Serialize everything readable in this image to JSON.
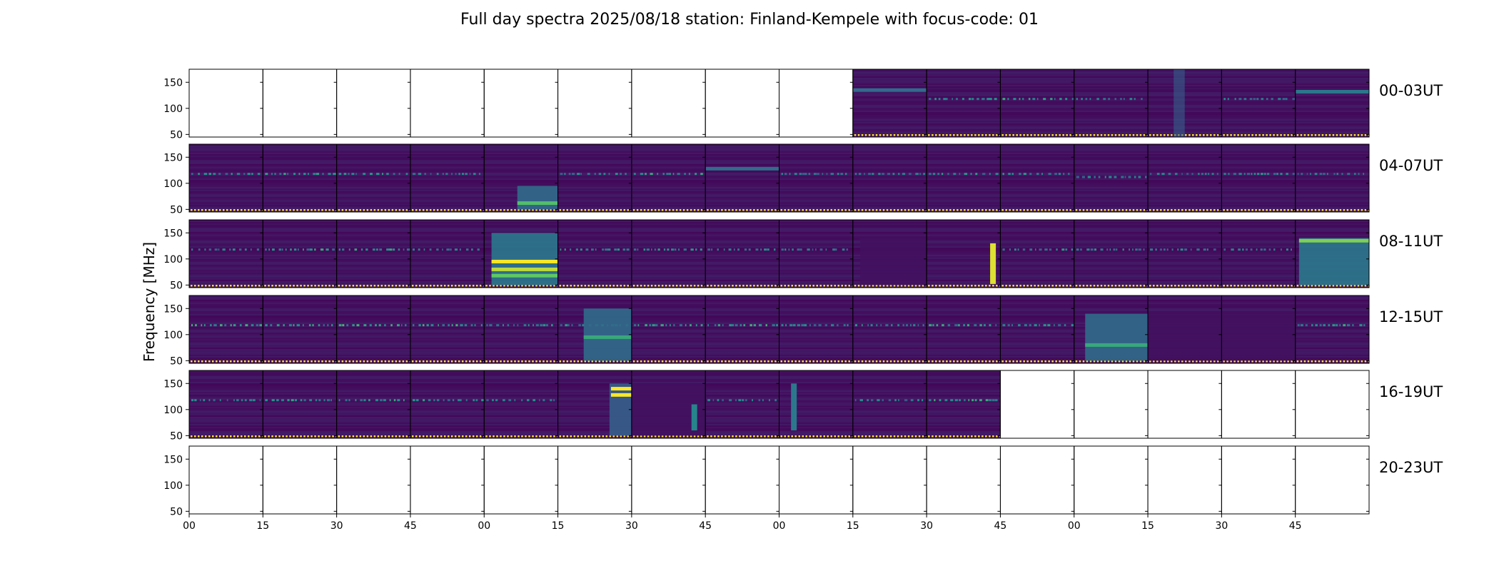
{
  "chart_data": {
    "type": "heatmap",
    "title": "Full day spectra 2025/08/18 station: Finland-Kempele with focus-code: 01",
    "ylabel": "Frequency [MHz]",
    "xlabel": "",
    "ylim": [
      45,
      175
    ],
    "yticks": [
      "150",
      "100",
      "50"
    ],
    "ytick_values": [
      150,
      100,
      50
    ],
    "xtick_labels": [
      "00",
      "15",
      "30",
      "45",
      "00",
      "15",
      "30",
      "45",
      "00",
      "15",
      "30",
      "45",
      "00",
      "15",
      "30",
      "45"
    ],
    "colormap": [
      "#440154",
      "#3b528b",
      "#21918c",
      "#5ec962",
      "#fde725"
    ],
    "rows": [
      {
        "label": "00-03UT",
        "data_flags": [
          0,
          0,
          0,
          0,
          0,
          0,
          0,
          0,
          0,
          1,
          1,
          1,
          1,
          1,
          1,
          1
        ],
        "features": [
          {
            "panel": 9,
            "type": "hline",
            "freq": 135,
            "intensity": 0.35
          },
          {
            "panel": 10,
            "type": "dashed",
            "freq": 118,
            "intensity": 0.55
          },
          {
            "panel": 11,
            "type": "dashed",
            "freq": 118,
            "intensity": 0.55
          },
          {
            "panel": 12,
            "type": "dashed",
            "freq": 118,
            "intensity": 0.5
          },
          {
            "panel": 13,
            "type": "vband",
            "t0": 0.35,
            "t1": 0.5,
            "intensity": 0.3
          },
          {
            "panel": 14,
            "type": "dashed",
            "freq": 118,
            "intensity": 0.45
          },
          {
            "panel": 15,
            "type": "hline",
            "freq": 132,
            "intensity": 0.4
          }
        ]
      },
      {
        "label": "04-07UT",
        "data_flags": [
          1,
          1,
          1,
          1,
          1,
          1,
          1,
          1,
          1,
          1,
          1,
          1,
          1,
          1,
          1,
          1
        ],
        "features": [
          {
            "panel": 0,
            "type": "dashed",
            "freq": 118,
            "intensity": 0.5
          },
          {
            "panel": 1,
            "type": "dashed",
            "freq": 118,
            "intensity": 0.55
          },
          {
            "panel": 2,
            "type": "dashed",
            "freq": 118,
            "intensity": 0.55
          },
          {
            "panel": 3,
            "type": "dashed",
            "freq": 118,
            "intensity": 0.45
          },
          {
            "panel": 4,
            "type": "block",
            "t0": 0.45,
            "t1": 1.0,
            "f0": 50,
            "f1": 95,
            "intensity": 0.35
          },
          {
            "panel": 4,
            "type": "hline",
            "freq": 62,
            "t0": 0.45,
            "t1": 1.0,
            "intensity": 0.7
          },
          {
            "panel": 5,
            "type": "dashed",
            "freq": 118,
            "intensity": 0.5
          },
          {
            "panel": 6,
            "type": "dashed",
            "freq": 118,
            "intensity": 0.55
          },
          {
            "panel": 7,
            "type": "hline",
            "freq": 128,
            "intensity": 0.35
          },
          {
            "panel": 8,
            "type": "dashed",
            "freq": 118,
            "intensity": 0.45
          },
          {
            "panel": 9,
            "type": "dashed",
            "freq": 118,
            "intensity": 0.45
          },
          {
            "panel": 10,
            "type": "dashed",
            "freq": 118,
            "intensity": 0.5
          },
          {
            "panel": 11,
            "type": "dashed",
            "freq": 118,
            "intensity": 0.5
          },
          {
            "panel": 12,
            "type": "dashed",
            "freq": 112,
            "intensity": 0.5
          },
          {
            "panel": 13,
            "type": "dashed",
            "freq": 118,
            "intensity": 0.45
          },
          {
            "panel": 14,
            "type": "dashed",
            "freq": 118,
            "intensity": 0.5
          },
          {
            "panel": 15,
            "type": "dashed",
            "freq": 118,
            "intensity": 0.45
          }
        ]
      },
      {
        "label": "08-11UT",
        "data_flags": [
          1,
          1,
          1,
          1,
          1,
          1,
          1,
          1,
          1,
          1,
          1,
          1,
          1,
          1,
          1,
          1
        ],
        "features": [
          {
            "panel": 0,
            "type": "dashed",
            "freq": 118,
            "intensity": 0.45
          },
          {
            "panel": 1,
            "type": "dashed",
            "freq": 118,
            "intensity": 0.55
          },
          {
            "panel": 2,
            "type": "dashed",
            "freq": 118,
            "intensity": 0.55
          },
          {
            "panel": 3,
            "type": "dashed",
            "freq": 118,
            "intensity": 0.45
          },
          {
            "panel": 4,
            "type": "block",
            "t0": 0.1,
            "t1": 1.0,
            "f0": 50,
            "f1": 150,
            "intensity": 0.4
          },
          {
            "panel": 4,
            "type": "hline",
            "freq": 95,
            "t0": 0.1,
            "t1": 1.0,
            "intensity": 1.0
          },
          {
            "panel": 4,
            "type": "hline",
            "freq": 80,
            "t0": 0.1,
            "t1": 1.0,
            "intensity": 0.9
          },
          {
            "panel": 4,
            "type": "hline",
            "freq": 68,
            "t0": 0.1,
            "t1": 1.0,
            "intensity": 0.75
          },
          {
            "panel": 5,
            "type": "dashed",
            "freq": 118,
            "intensity": 0.5
          },
          {
            "panel": 6,
            "type": "dashed",
            "freq": 118,
            "intensity": 0.5
          },
          {
            "panel": 7,
            "type": "dashed",
            "freq": 118,
            "intensity": 0.45
          },
          {
            "panel": 8,
            "type": "dashed",
            "freq": 118,
            "intensity": 0.45
          },
          {
            "panel": 9,
            "type": "block",
            "t0": 0.1,
            "t1": 1.0,
            "f0": 50,
            "f1": 140,
            "intensity": 0.05
          },
          {
            "panel": 10,
            "type": "vburst",
            "t": 0.9,
            "f0": 52,
            "f1": 130,
            "intensity": 0.95
          },
          {
            "panel": 11,
            "type": "dashed",
            "freq": 118,
            "intensity": 0.5
          },
          {
            "panel": 12,
            "type": "dashed",
            "freq": 118,
            "intensity": 0.5
          },
          {
            "panel": 13,
            "type": "dashed",
            "freq": 118,
            "intensity": 0.45
          },
          {
            "panel": 14,
            "type": "dashed",
            "freq": 118,
            "intensity": 0.45
          },
          {
            "panel": 15,
            "type": "block",
            "t0": 0.05,
            "t1": 1.0,
            "f0": 50,
            "f1": 140,
            "intensity": 0.4
          },
          {
            "panel": 15,
            "type": "hline",
            "freq": 135,
            "t0": 0.05,
            "t1": 1.0,
            "intensity": 0.8
          }
        ]
      },
      {
        "label": "12-15UT",
        "data_flags": [
          1,
          1,
          1,
          1,
          1,
          1,
          1,
          1,
          1,
          1,
          1,
          1,
          1,
          1,
          1,
          1
        ],
        "features": [
          {
            "panel": 0,
            "type": "dashed",
            "freq": 118,
            "intensity": 0.6
          },
          {
            "panel": 1,
            "type": "dashed",
            "freq": 118,
            "intensity": 0.55
          },
          {
            "panel": 2,
            "type": "dashed",
            "freq": 118,
            "intensity": 0.6
          },
          {
            "panel": 3,
            "type": "dashed",
            "freq": 118,
            "intensity": 0.6
          },
          {
            "panel": 4,
            "type": "dashed",
            "freq": 118,
            "intensity": 0.5
          },
          {
            "panel": 5,
            "type": "dashed",
            "freq": 118,
            "intensity": 0.5
          },
          {
            "panel": 5,
            "type": "block",
            "t0": 0.35,
            "t1": 1.0,
            "f0": 50,
            "f1": 150,
            "intensity": 0.35
          },
          {
            "panel": 5,
            "type": "hline",
            "freq": 95,
            "t0": 0.35,
            "t1": 1.0,
            "intensity": 0.6
          },
          {
            "panel": 6,
            "type": "dashed",
            "freq": 118,
            "intensity": 0.55
          },
          {
            "panel": 7,
            "type": "dashed",
            "freq": 118,
            "intensity": 0.6
          },
          {
            "panel": 8,
            "type": "dashed",
            "freq": 118,
            "intensity": 0.5
          },
          {
            "panel": 9,
            "type": "dashed",
            "freq": 118,
            "intensity": 0.5
          },
          {
            "panel": 10,
            "type": "dashed",
            "freq": 118,
            "intensity": 0.55
          },
          {
            "panel": 11,
            "type": "dashed",
            "freq": 118,
            "intensity": 0.5
          },
          {
            "panel": 12,
            "type": "block",
            "t0": 0.15,
            "t1": 1.0,
            "f0": 50,
            "f1": 140,
            "intensity": 0.35
          },
          {
            "panel": 12,
            "type": "hline",
            "freq": 80,
            "t0": 0.15,
            "t1": 1.0,
            "intensity": 0.6
          },
          {
            "panel": 13,
            "type": "block",
            "t0": 0.0,
            "t1": 1.0,
            "f0": 50,
            "f1": 140,
            "intensity": 0.05
          },
          {
            "panel": 14,
            "type": "block",
            "t0": 0.0,
            "t1": 1.0,
            "f0": 50,
            "f1": 140,
            "intensity": 0.05
          },
          {
            "panel": 15,
            "type": "dashed",
            "freq": 118,
            "intensity": 0.55
          }
        ]
      },
      {
        "label": "16-19UT",
        "data_flags": [
          1,
          1,
          1,
          1,
          1,
          1,
          1,
          1,
          1,
          1,
          1,
          0,
          0,
          0,
          0,
          0
        ],
        "features": [
          {
            "panel": 0,
            "type": "dashed",
            "freq": 118,
            "intensity": 0.45
          },
          {
            "panel": 1,
            "type": "dashed",
            "freq": 118,
            "intensity": 0.55
          },
          {
            "panel": 2,
            "type": "dashed",
            "freq": 118,
            "intensity": 0.55
          },
          {
            "panel": 3,
            "type": "dashed",
            "freq": 118,
            "intensity": 0.5
          },
          {
            "panel": 4,
            "type": "dashed",
            "freq": 118,
            "intensity": 0.45
          },
          {
            "panel": 5,
            "type": "block",
            "t0": 0.7,
            "t1": 1.0,
            "f0": 50,
            "f1": 150,
            "intensity": 0.3
          },
          {
            "panel": 5,
            "type": "hline",
            "freq": 140,
            "t0": 0.72,
            "t1": 1.0,
            "intensity": 1.0
          },
          {
            "panel": 5,
            "type": "hline",
            "freq": 128,
            "t0": 0.72,
            "t1": 1.0,
            "intensity": 1.0
          },
          {
            "panel": 6,
            "type": "block",
            "t0": 0.0,
            "t1": 1.0,
            "f0": 50,
            "f1": 150,
            "intensity": 0.05
          },
          {
            "panel": 6,
            "type": "vburst",
            "t": 0.85,
            "f0": 60,
            "f1": 110,
            "intensity": 0.45
          },
          {
            "panel": 7,
            "type": "dashed",
            "freq": 118,
            "intensity": 0.45
          },
          {
            "panel": 8,
            "type": "vburst",
            "t": 0.2,
            "f0": 60,
            "f1": 150,
            "intensity": 0.4
          },
          {
            "panel": 9,
            "type": "dashed",
            "freq": 118,
            "intensity": 0.45
          },
          {
            "panel": 10,
            "type": "dashed",
            "freq": 118,
            "intensity": 0.6
          }
        ]
      },
      {
        "label": "20-23UT",
        "data_flags": [
          0,
          0,
          0,
          0,
          0,
          0,
          0,
          0,
          0,
          0,
          0,
          0,
          0,
          0,
          0,
          0
        ],
        "features": []
      }
    ]
  }
}
